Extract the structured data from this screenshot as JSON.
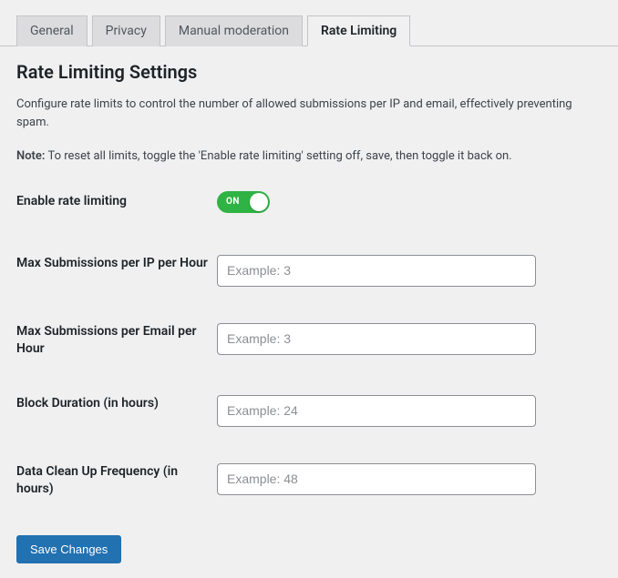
{
  "tabs": {
    "general": "General",
    "privacy": "Privacy",
    "manual_moderation": "Manual moderation",
    "rate_limiting": "Rate Limiting"
  },
  "heading": "Rate Limiting Settings",
  "description": "Configure rate limits to control the number of allowed submissions per IP and email, effectively preventing spam.",
  "note_label": "Note:",
  "note_text": " To reset all limits, toggle the 'Enable rate limiting' setting off, save, then toggle it back on.",
  "fields": {
    "enable": {
      "label": "Enable rate limiting",
      "state": "ON"
    },
    "max_ip": {
      "label": "Max Submissions per IP per Hour",
      "placeholder": "Example: 3",
      "value": ""
    },
    "max_email": {
      "label": "Max Submissions per Email per Hour",
      "placeholder": "Example: 3",
      "value": ""
    },
    "block_duration": {
      "label": "Block Duration (in hours)",
      "placeholder": "Example: 24",
      "value": ""
    },
    "cleanup_freq": {
      "label": "Data Clean Up Frequency (in hours)",
      "placeholder": "Example: 48",
      "value": ""
    }
  },
  "save_button": "Save Changes",
  "colors": {
    "page_bg": "#f0f0f1",
    "tab_inactive_bg": "#dcdcde",
    "tab_border": "#c3c4c7",
    "toggle_on": "#2fb344",
    "primary_btn": "#2271b1",
    "input_border": "#8c8f94",
    "text": "#1d2327"
  }
}
